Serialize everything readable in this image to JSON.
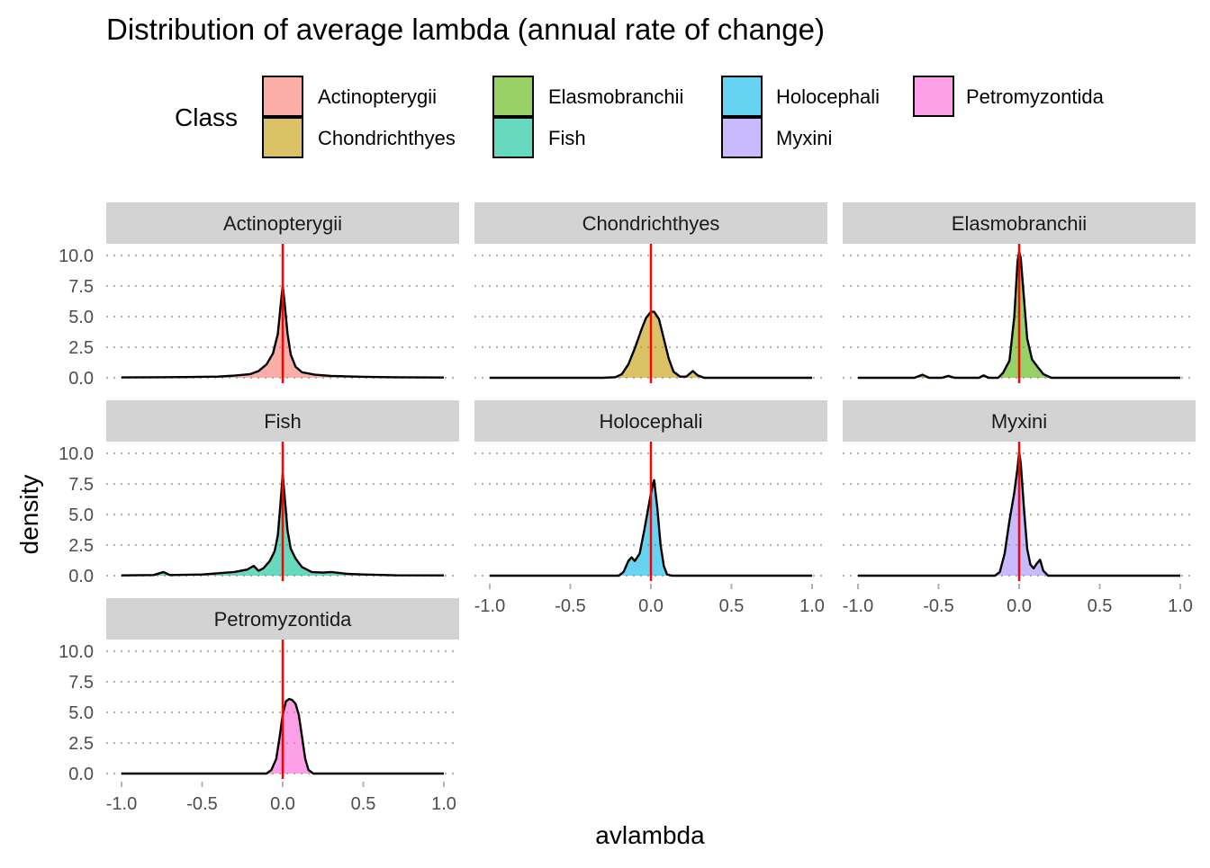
{
  "chart_data": {
    "type": "area",
    "title": "Distribution of average lambda (annual rate of change)",
    "xlabel": "avlambda",
    "ylabel": "density",
    "xlim": [
      -1.0,
      1.0
    ],
    "ylim": [
      0,
      10.0
    ],
    "x_ticks": [
      "-1.0",
      "-0.5",
      "0.0",
      "0.5",
      "1.0"
    ],
    "y_ticks": [
      "0.0",
      "2.5",
      "5.0",
      "7.5",
      "10.0"
    ],
    "grid": "horizontal dotted",
    "reference_line": {
      "x": 0.0,
      "color": "#ff0000"
    },
    "legend": {
      "title": "Class",
      "placement": "top",
      "entries": [
        {
          "name": "Actinopterygii",
          "color": "#F8766D"
        },
        {
          "name": "Chondrichthyes",
          "color": "#C49A00"
        },
        {
          "name": "Elasmobranchii",
          "color": "#53B400"
        },
        {
          "name": "Fish",
          "color": "#00C094"
        },
        {
          "name": "Holocephali",
          "color": "#00B6EB"
        },
        {
          "name": "Myxini",
          "color": "#A58AFF"
        },
        {
          "name": "Petromyzontida",
          "color": "#FB61D7"
        }
      ]
    },
    "panels": [
      {
        "name": "Actinopterygii",
        "color": "#F8766D",
        "points": [
          [
            -1,
            0.03
          ],
          [
            -0.8,
            0.04
          ],
          [
            -0.6,
            0.06
          ],
          [
            -0.4,
            0.1
          ],
          [
            -0.3,
            0.18
          ],
          [
            -0.2,
            0.3
          ],
          [
            -0.15,
            0.55
          ],
          [
            -0.1,
            1.1
          ],
          [
            -0.06,
            2.0
          ],
          [
            -0.03,
            3.6
          ],
          [
            -0.01,
            6.3
          ],
          [
            0,
            7.5
          ],
          [
            0.01,
            6.4
          ],
          [
            0.03,
            3.6
          ],
          [
            0.05,
            1.9
          ],
          [
            0.08,
            0.9
          ],
          [
            0.12,
            0.45
          ],
          [
            0.2,
            0.25
          ],
          [
            0.3,
            0.15
          ],
          [
            0.5,
            0.08
          ],
          [
            0.7,
            0.04
          ],
          [
            1,
            0.02
          ]
        ]
      },
      {
        "name": "Chondrichthyes",
        "color": "#C49A00",
        "points": [
          [
            -1,
            0
          ],
          [
            -0.3,
            0
          ],
          [
            -0.22,
            0.05
          ],
          [
            -0.18,
            0.3
          ],
          [
            -0.14,
            1.1
          ],
          [
            -0.1,
            2.4
          ],
          [
            -0.06,
            3.9
          ],
          [
            -0.03,
            4.9
          ],
          [
            0,
            5.4
          ],
          [
            0.02,
            5.4
          ],
          [
            0.05,
            4.8
          ],
          [
            0.08,
            3.2
          ],
          [
            0.11,
            1.6
          ],
          [
            0.14,
            0.5
          ],
          [
            0.18,
            0.1
          ],
          [
            0.22,
            0.1
          ],
          [
            0.26,
            0.55
          ],
          [
            0.29,
            0.2
          ],
          [
            0.33,
            0
          ],
          [
            1,
            0
          ]
        ]
      },
      {
        "name": "Elasmobranchii",
        "color": "#53B400",
        "points": [
          [
            -1,
            0
          ],
          [
            -0.65,
            0
          ],
          [
            -0.6,
            0.25
          ],
          [
            -0.56,
            0
          ],
          [
            -0.48,
            0
          ],
          [
            -0.44,
            0.15
          ],
          [
            -0.4,
            0
          ],
          [
            -0.25,
            0
          ],
          [
            -0.22,
            0.2
          ],
          [
            -0.19,
            0
          ],
          [
            -0.13,
            0
          ],
          [
            -0.1,
            0.4
          ],
          [
            -0.06,
            1.4
          ],
          [
            -0.03,
            5.0
          ],
          [
            -0.01,
            9.5
          ],
          [
            0,
            10.3
          ],
          [
            0.01,
            9.8
          ],
          [
            0.03,
            6.5
          ],
          [
            0.05,
            3.2
          ],
          [
            0.08,
            1.5
          ],
          [
            0.12,
            0.8
          ],
          [
            0.15,
            0.3
          ],
          [
            0.2,
            0
          ],
          [
            1,
            0
          ]
        ]
      },
      {
        "name": "Fish",
        "color": "#00C094",
        "points": [
          [
            -1,
            0.02
          ],
          [
            -0.8,
            0.05
          ],
          [
            -0.74,
            0.3
          ],
          [
            -0.7,
            0.05
          ],
          [
            -0.5,
            0.1
          ],
          [
            -0.4,
            0.2
          ],
          [
            -0.3,
            0.3
          ],
          [
            -0.22,
            0.5
          ],
          [
            -0.18,
            0.8
          ],
          [
            -0.15,
            0.4
          ],
          [
            -0.12,
            0.6
          ],
          [
            -0.08,
            1.2
          ],
          [
            -0.05,
            2.0
          ],
          [
            -0.03,
            3.3
          ],
          [
            -0.01,
            6.5
          ],
          [
            0,
            8.3
          ],
          [
            0.01,
            6.8
          ],
          [
            0.03,
            3.7
          ],
          [
            0.05,
            2.2
          ],
          [
            0.08,
            1.4
          ],
          [
            0.12,
            0.7
          ],
          [
            0.18,
            0.3
          ],
          [
            0.25,
            0.25
          ],
          [
            0.3,
            0.3
          ],
          [
            0.4,
            0.15
          ],
          [
            0.5,
            0.1
          ],
          [
            0.7,
            0.03
          ],
          [
            1,
            0.02
          ]
        ]
      },
      {
        "name": "Holocephali",
        "color": "#00B6EB",
        "points": [
          [
            -1,
            0
          ],
          [
            -0.2,
            0
          ],
          [
            -0.17,
            0.3
          ],
          [
            -0.14,
            1.2
          ],
          [
            -0.12,
            1.5
          ],
          [
            -0.1,
            1.2
          ],
          [
            -0.07,
            1.8
          ],
          [
            -0.04,
            3.8
          ],
          [
            -0.01,
            6.0
          ],
          [
            0.01,
            7.4
          ],
          [
            0.02,
            7.8
          ],
          [
            0.04,
            5.5
          ],
          [
            0.06,
            2.5
          ],
          [
            0.08,
            0.8
          ],
          [
            0.1,
            0.1
          ],
          [
            0.13,
            0
          ],
          [
            1,
            0
          ]
        ]
      },
      {
        "name": "Myxini",
        "color": "#A58AFF",
        "points": [
          [
            -1,
            0
          ],
          [
            -0.15,
            0
          ],
          [
            -0.12,
            0.3
          ],
          [
            -0.09,
            1.8
          ],
          [
            -0.06,
            4.5
          ],
          [
            -0.03,
            6.8
          ],
          [
            -0.01,
            8.8
          ],
          [
            0,
            10.1
          ],
          [
            0.01,
            9.2
          ],
          [
            0.03,
            5.5
          ],
          [
            0.05,
            2.2
          ],
          [
            0.07,
            0.9
          ],
          [
            0.09,
            0.6
          ],
          [
            0.11,
            1.0
          ],
          [
            0.13,
            1.3
          ],
          [
            0.15,
            0.4
          ],
          [
            0.18,
            0
          ],
          [
            1,
            0
          ]
        ]
      },
      {
        "name": "Petromyzontida",
        "color": "#FB61D7",
        "points": [
          [
            -1,
            0
          ],
          [
            -0.1,
            0
          ],
          [
            -0.07,
            0.3
          ],
          [
            -0.04,
            1.2
          ],
          [
            -0.02,
            2.9
          ],
          [
            0,
            4.8
          ],
          [
            0.02,
            5.9
          ],
          [
            0.04,
            6.1
          ],
          [
            0.06,
            6.0
          ],
          [
            0.08,
            5.7
          ],
          [
            0.1,
            4.8
          ],
          [
            0.12,
            3.0
          ],
          [
            0.14,
            1.2
          ],
          [
            0.16,
            0.3
          ],
          [
            0.19,
            0
          ],
          [
            1,
            0
          ]
        ]
      }
    ]
  }
}
